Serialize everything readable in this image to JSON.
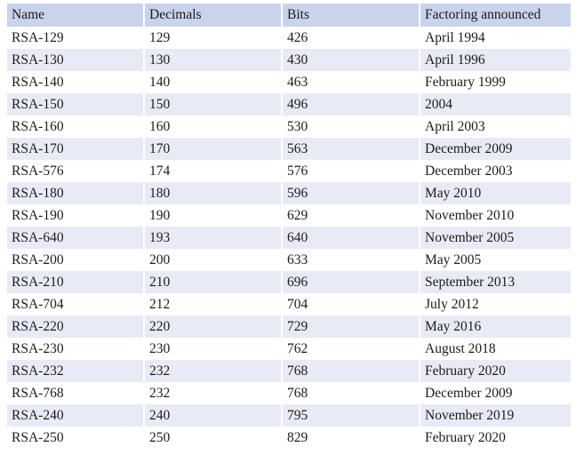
{
  "table": {
    "headers": [
      "Name",
      "Decimals",
      "Bits",
      "Factoring announced"
    ],
    "rows": [
      [
        "RSA-129",
        "129",
        "426",
        "April 1994"
      ],
      [
        "RSA-130",
        "130",
        "430",
        "April 1996"
      ],
      [
        "RSA-140",
        "140",
        "463",
        "February 1999"
      ],
      [
        "RSA-150",
        "150",
        "496",
        "2004"
      ],
      [
        "RSA-160",
        "160",
        "530",
        "April 2003"
      ],
      [
        "RSA-170",
        "170",
        "563",
        "December 2009"
      ],
      [
        "RSA-576",
        "174",
        "576",
        "December 2003"
      ],
      [
        "RSA-180",
        "180",
        "596",
        "May 2010"
      ],
      [
        "RSA-190",
        "190",
        "629",
        "November 2010"
      ],
      [
        "RSA-640",
        "193",
        "640",
        "November 2005"
      ],
      [
        "RSA-200",
        "200",
        "633",
        "May 2005"
      ],
      [
        "RSA-210",
        "210",
        "696",
        "September 2013"
      ],
      [
        "RSA-704",
        "212",
        "704",
        "July 2012"
      ],
      [
        "RSA-220",
        "220",
        "729",
        "May 2016"
      ],
      [
        "RSA-230",
        "230",
        "762",
        "August 2018"
      ],
      [
        "RSA-232",
        "232",
        "768",
        "February 2020"
      ],
      [
        "RSA-768",
        "232",
        "768",
        "December 2009"
      ],
      [
        "RSA-240",
        "240",
        "795",
        "November 2019"
      ],
      [
        "RSA-250",
        "250",
        "829",
        "February 2020"
      ]
    ]
  },
  "colors": {
    "header_bg": "#c9d3ec",
    "row_alt_bg": "#e8ebf5",
    "row_bg": "#ffffff",
    "text": "#1c1c1c"
  }
}
